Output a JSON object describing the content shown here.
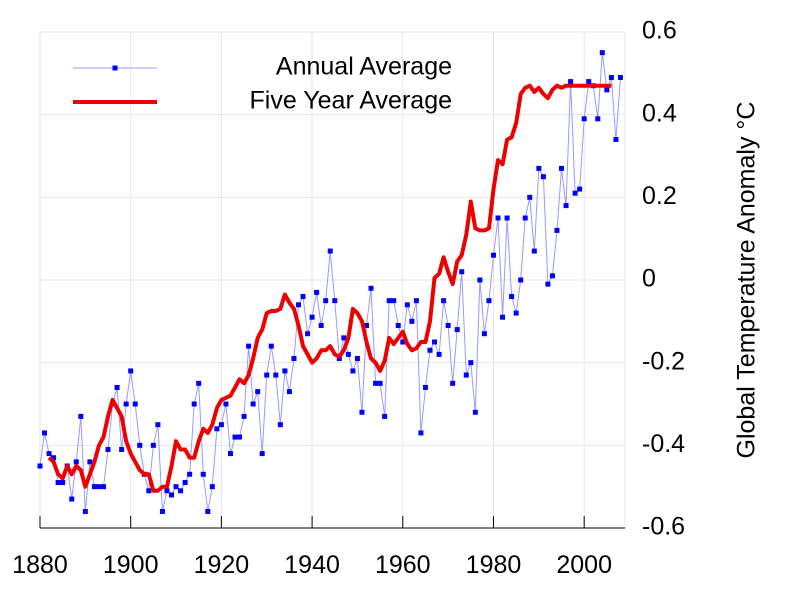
{
  "chart_data": {
    "type": "line",
    "title": "",
    "xlabel": "",
    "ylabel": "Global Temperature Anomaly °C",
    "xlim": [
      1880,
      2009
    ],
    "ylim": [
      -0.6,
      0.6
    ],
    "x_ticks": [
      1880,
      1900,
      1920,
      1940,
      1960,
      1980,
      2000
    ],
    "y_ticks": [
      0.6,
      0.4,
      0.2,
      0,
      -0.2,
      -0.4,
      -0.6
    ],
    "x_tick_labels": [
      "1880",
      "1900",
      "1920",
      "1940",
      "1960",
      "1980",
      "2000"
    ],
    "y_tick_labels": [
      "0.6",
      "0.4",
      "0.2",
      "0",
      "-0.2",
      "-0.4",
      "-0.6"
    ],
    "grid": true,
    "legend_position": "top-left",
    "series": [
      {
        "name": "Annual Average",
        "color": "#0000ff",
        "line_color": "#9999ff",
        "style": "thin line with square markers",
        "x": [
          1880,
          1881,
          1882,
          1883,
          1884,
          1885,
          1886,
          1887,
          1888,
          1889,
          1890,
          1891,
          1892,
          1893,
          1894,
          1895,
          1896,
          1897,
          1898,
          1899,
          1900,
          1901,
          1902,
          1903,
          1904,
          1905,
          1906,
          1907,
          1908,
          1909,
          1910,
          1911,
          1912,
          1913,
          1914,
          1915,
          1916,
          1917,
          1918,
          1919,
          1920,
          1921,
          1922,
          1923,
          1924,
          1925,
          1926,
          1927,
          1928,
          1929,
          1930,
          1931,
          1932,
          1933,
          1934,
          1935,
          1936,
          1937,
          1938,
          1939,
          1940,
          1941,
          1942,
          1943,
          1944,
          1945,
          1946,
          1947,
          1948,
          1949,
          1950,
          1951,
          1952,
          1953,
          1954,
          1955,
          1956,
          1957,
          1958,
          1959,
          1960,
          1961,
          1962,
          1963,
          1964,
          1965,
          1966,
          1967,
          1968,
          1969,
          1970,
          1971,
          1972,
          1973,
          1974,
          1975,
          1976,
          1977,
          1978,
          1979,
          1980,
          1981,
          1982,
          1983,
          1984,
          1985,
          1986,
          1987,
          1988,
          1989,
          1990,
          1991,
          1992,
          1993,
          1994,
          1995,
          1996,
          1997,
          1998,
          1999,
          2000,
          2001,
          2002,
          2003,
          2004,
          2005,
          2006,
          2007,
          2008
        ],
        "values": [
          -0.45,
          -0.37,
          -0.42,
          -0.43,
          -0.49,
          -0.49,
          -0.45,
          -0.53,
          -0.44,
          -0.33,
          -0.56,
          -0.44,
          -0.5,
          -0.5,
          -0.5,
          -0.41,
          -0.3,
          -0.26,
          -0.41,
          -0.3,
          -0.22,
          -0.3,
          -0.4,
          -0.47,
          -0.51,
          -0.4,
          -0.35,
          -0.56,
          -0.51,
          -0.52,
          -0.5,
          -0.51,
          -0.49,
          -0.47,
          -0.3,
          -0.25,
          -0.47,
          -0.56,
          -0.5,
          -0.36,
          -0.35,
          -0.3,
          -0.42,
          -0.38,
          -0.38,
          -0.33,
          -0.16,
          -0.3,
          -0.27,
          -0.42,
          -0.23,
          -0.16,
          -0.23,
          -0.35,
          -0.22,
          -0.27,
          -0.19,
          -0.06,
          -0.04,
          -0.13,
          -0.09,
          -0.03,
          -0.11,
          -0.05,
          0.07,
          -0.05,
          -0.19,
          -0.14,
          -0.18,
          -0.22,
          -0.19,
          -0.32,
          -0.11,
          -0.02,
          -0.25,
          -0.25,
          -0.33,
          -0.05,
          -0.05,
          -0.11,
          -0.15,
          -0.06,
          -0.1,
          -0.05,
          -0.37,
          -0.26,
          -0.17,
          -0.15,
          -0.18,
          -0.05,
          -0.11,
          -0.25,
          -0.12,
          0.02,
          -0.23,
          -0.2,
          -0.32,
          0.0,
          -0.13,
          -0.05,
          0.06,
          0.15,
          -0.09,
          0.15,
          -0.04,
          -0.08,
          0.0,
          0.15,
          0.2,
          0.07,
          0.27,
          0.25,
          -0.01,
          0.01,
          0.12,
          0.27,
          0.18,
          0.48,
          0.21,
          0.22,
          0.39,
          0.48,
          0.47,
          0.39,
          0.55,
          0.46,
          0.49,
          0.34,
          0.49
        ]
      },
      {
        "name": "Five Year Average",
        "color": "#ee0000",
        "style": "thick line",
        "x": [
          1882,
          1883,
          1884,
          1885,
          1886,
          1887,
          1888,
          1889,
          1890,
          1891,
          1892,
          1893,
          1894,
          1895,
          1896,
          1897,
          1898,
          1899,
          1900,
          1901,
          1902,
          1903,
          1904,
          1905,
          1906,
          1907,
          1908,
          1909,
          1910,
          1911,
          1912,
          1913,
          1914,
          1915,
          1916,
          1917,
          1918,
          1919,
          1920,
          1921,
          1922,
          1923,
          1924,
          1925,
          1926,
          1927,
          1928,
          1929,
          1930,
          1931,
          1932,
          1933,
          1934,
          1935,
          1936,
          1937,
          1938,
          1939,
          1940,
          1941,
          1942,
          1943,
          1944,
          1945,
          1946,
          1947,
          1948,
          1949,
          1950,
          1951,
          1952,
          1953,
          1954,
          1955,
          1956,
          1957,
          1958,
          1959,
          1960,
          1961,
          1962,
          1963,
          1964,
          1965,
          1966,
          1967,
          1968,
          1969,
          1970,
          1971,
          1972,
          1973,
          1974,
          1975,
          1976,
          1977,
          1978,
          1979,
          1980,
          1981,
          1982,
          1983,
          1984,
          1985,
          1986,
          1987,
          1988,
          1989,
          1990,
          1991,
          1992,
          1993,
          1994,
          1995,
          1996,
          1997,
          1998,
          1999,
          2000,
          2001,
          2002,
          2003,
          2004,
          2005,
          2006
        ],
        "values": [
          -0.43,
          -0.44,
          -0.47,
          -0.48,
          -0.45,
          -0.47,
          -0.45,
          -0.46,
          -0.5,
          -0.47,
          -0.44,
          -0.4,
          -0.38,
          -0.33,
          -0.29,
          -0.31,
          -0.33,
          -0.39,
          -0.42,
          -0.44,
          -0.46,
          -0.47,
          -0.47,
          -0.51,
          -0.51,
          -0.5,
          -0.5,
          -0.45,
          -0.39,
          -0.41,
          -0.41,
          -0.43,
          -0.43,
          -0.39,
          -0.36,
          -0.37,
          -0.35,
          -0.31,
          -0.29,
          -0.285,
          -0.28,
          -0.26,
          -0.24,
          -0.25,
          -0.23,
          -0.19,
          -0.14,
          -0.12,
          -0.08,
          -0.075,
          -0.075,
          -0.07,
          -0.035,
          -0.055,
          -0.07,
          -0.11,
          -0.16,
          -0.18,
          -0.2,
          -0.19,
          -0.17,
          -0.17,
          -0.16,
          -0.18,
          -0.185,
          -0.17,
          -0.14,
          -0.07,
          -0.08,
          -0.1,
          -0.15,
          -0.19,
          -0.2,
          -0.22,
          -0.195,
          -0.14,
          -0.155,
          -0.14,
          -0.125,
          -0.155,
          -0.17,
          -0.165,
          -0.15,
          -0.15,
          -0.1,
          0.005,
          0.015,
          0.055,
          0.02,
          -0.01,
          0.045,
          0.06,
          0.11,
          0.19,
          0.125,
          0.12,
          0.12,
          0.125,
          0.22,
          0.29,
          0.28,
          0.34,
          0.345,
          0.38,
          0.45,
          0.465,
          0.47,
          0.455,
          0.465,
          0.45,
          0.44,
          0.46,
          0.47,
          0.465,
          0.47,
          0.47,
          0.47,
          0.47,
          0.47,
          0.47,
          0.47,
          0.47,
          0.47,
          0.47,
          0.47
        ]
      }
    ]
  }
}
